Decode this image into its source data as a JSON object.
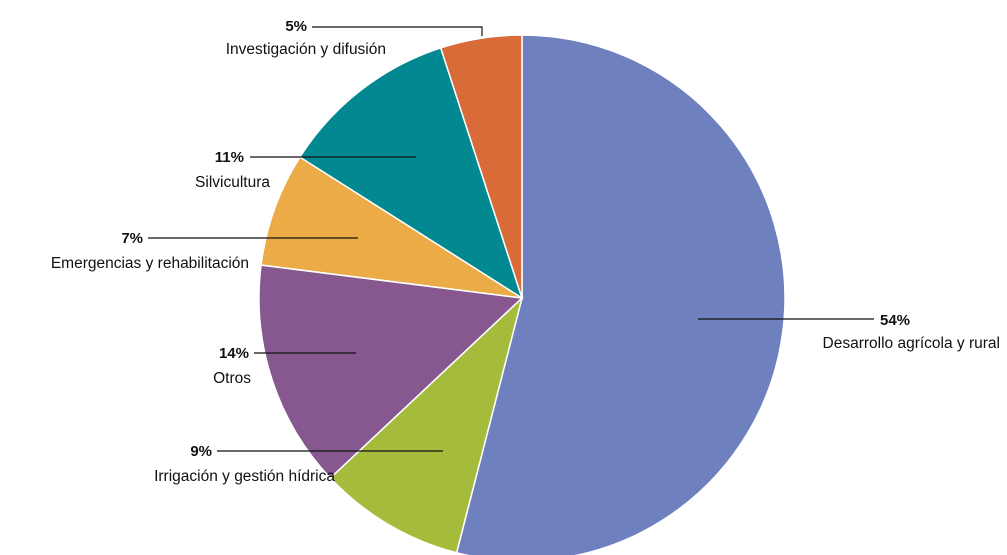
{
  "chart_data": {
    "type": "pie",
    "title": "",
    "slices": [
      {
        "key": "desarrollo",
        "label": "Desarrollo agrícola y rural",
        "pct_label": "54%",
        "value": 54,
        "color": "#6f80bf"
      },
      {
        "key": "irrigacion",
        "label": "Irrigación y gestión hídrica",
        "pct_label": "9%",
        "value": 9,
        "color": "#a4bb3c"
      },
      {
        "key": "otros",
        "label": "Otros",
        "pct_label": "14%",
        "value": 14,
        "color": "#86588f"
      },
      {
        "key": "emergencias",
        "label": "Emergencias y rehabilitación",
        "pct_label": "7%",
        "value": 7,
        "color": "#ebac47"
      },
      {
        "key": "silvicultura",
        "label": "Silvicultura",
        "pct_label": "11%",
        "value": 11,
        "color": "#018891"
      },
      {
        "key": "investigacion",
        "label": "Investigación y difusión",
        "pct_label": "5%",
        "value": 5,
        "color": "#d96b39"
      }
    ],
    "start": "12 o'clock",
    "direction": "clockwise"
  }
}
